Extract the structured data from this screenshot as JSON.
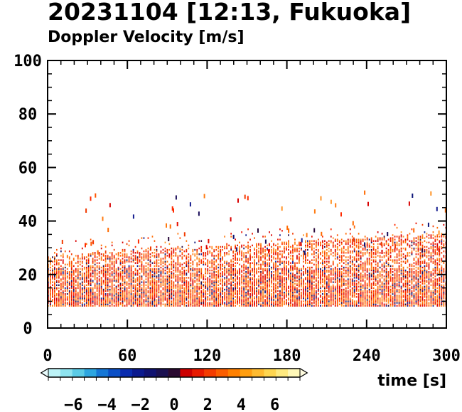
{
  "chart_data": {
    "type": "heatmap",
    "title": "20231104 [12:13, Fukuoka]",
    "subtitle": "Doppler Velocity [m/s]",
    "xlabel": "time [s]",
    "ylabel": "",
    "xlim": [
      0,
      300
    ],
    "ylim": [
      0,
      100
    ],
    "xticks": [
      0,
      60,
      120,
      180,
      240,
      300
    ],
    "yticks": [
      0,
      20,
      40,
      60,
      80,
      100
    ],
    "grid": false,
    "data_band": {
      "height_min": 8,
      "dense_top_early": 27,
      "dense_top_late": 35,
      "sparse_echo_max": 50
    },
    "colorbar": {
      "label": "",
      "range": [
        -7.5,
        7.5
      ],
      "ticks": [
        -6,
        -4,
        -2,
        0,
        2,
        4,
        6
      ],
      "colors": [
        "#bdf3f7",
        "#8ee3ef",
        "#5bcbe6",
        "#2ea6e0",
        "#1677d6",
        "#0b4fc6",
        "#0a2cae",
        "#0b1a8e",
        "#101270",
        "#1a1050",
        "#2a0a30",
        "#cc0000",
        "#e81a00",
        "#f43c00",
        "#fb5e00",
        "#ff8000",
        "#ff9e10",
        "#ffbb30",
        "#ffd650",
        "#ffea80",
        "#fff8b8"
      ]
    }
  }
}
